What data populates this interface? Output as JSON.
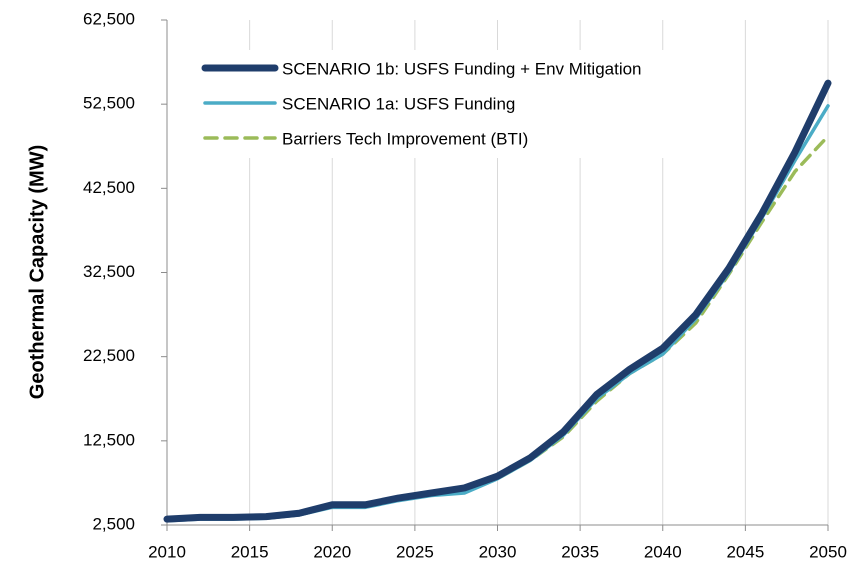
{
  "chart_data": {
    "type": "line",
    "y_label": "Geothermal Capacity (MW)",
    "x": [
      2010,
      2012,
      2014,
      2016,
      2018,
      2020,
      2022,
      2024,
      2026,
      2028,
      2030,
      2032,
      2034,
      2036,
      2038,
      2040,
      2042,
      2044,
      2046,
      2048,
      2050
    ],
    "series": [
      {
        "name": "SCENARIO 1b: USFS Funding + Env Mitigation",
        "color": "#1f3d6b",
        "width": 7,
        "dashed": false,
        "values": [
          3200,
          3400,
          3400,
          3500,
          3900,
          4900,
          4900,
          5700,
          6300,
          6900,
          8300,
          10500,
          13600,
          18000,
          21000,
          23500,
          27500,
          33000,
          39500,
          46800,
          55000
        ]
      },
      {
        "name": "SCENARIO 1a: USFS Funding",
        "color": "#4bacc6",
        "width": 3.5,
        "dashed": false,
        "values": [
          3000,
          3200,
          3200,
          3300,
          3700,
          4600,
          4600,
          5400,
          6000,
          6300,
          8000,
          10200,
          13200,
          17500,
          20500,
          22800,
          27000,
          32500,
          39000,
          45800,
          52300
        ]
      },
      {
        "name": "Barriers Tech Improvement (BTI)",
        "color": "#9bbb59",
        "width": 3.5,
        "dashed": true,
        "values": [
          3100,
          3300,
          3300,
          3300,
          3700,
          4700,
          4700,
          5500,
          6100,
          6600,
          8000,
          10200,
          13000,
          17200,
          20500,
          22800,
          26500,
          32300,
          38500,
          44500,
          48700
        ]
      }
    ],
    "xlim": [
      2010,
      2050
    ],
    "xticks": [
      2010,
      2015,
      2020,
      2025,
      2030,
      2035,
      2040,
      2045,
      2050
    ],
    "ylim": [
      2500,
      62500
    ],
    "yticks": [
      {
        "value": 2500,
        "label": "2,500"
      },
      {
        "value": 12500,
        "label": "12,500"
      },
      {
        "value": 22500,
        "label": "22,500"
      },
      {
        "value": 32500,
        "label": "32,500"
      },
      {
        "value": 42500,
        "label": "42,500"
      },
      {
        "value": 52500,
        "label": "52,500"
      },
      {
        "value": 62500,
        "label": "62,500"
      }
    ],
    "grid": "x"
  }
}
